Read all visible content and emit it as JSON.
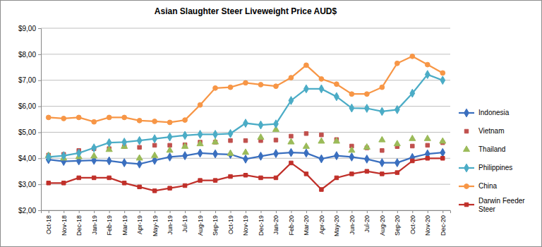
{
  "chart_data": {
    "type": "line",
    "title": "Asian Slaughter Steer Liveweight Price AUD$",
    "categories": [
      "Oct-18",
      "Nov-18",
      "Dec-18",
      "Jan-19",
      "Feb-19",
      "Mar-19",
      "Apr-19",
      "May-19",
      "Jun-19",
      "Jul-19",
      "Aug-19",
      "Sep-19",
      "Oct-19",
      "Nov-19",
      "Dec-19",
      "Jan-20",
      "Feb-20",
      "Mar-20",
      "Apr-20",
      "May-20",
      "Jun-20",
      "Jul-20",
      "Aug-20",
      "Sep-20",
      "Oct-20",
      "Nov-20",
      "Dec-20"
    ],
    "ylim": [
      2,
      9
    ],
    "yticks": [
      {
        "value": 2,
        "label": "$2,00"
      },
      {
        "value": 3,
        "label": "$3,00"
      },
      {
        "value": 4,
        "label": "$4,00"
      },
      {
        "value": 5,
        "label": "$5,00"
      },
      {
        "value": 6,
        "label": "$6,00"
      },
      {
        "value": 7,
        "label": "$7,00"
      },
      {
        "value": 8,
        "label": "$8,00"
      },
      {
        "value": 9,
        "label": "$9,00"
      }
    ],
    "grid": true,
    "legend": "right",
    "series": [
      {
        "name": "Indonesia",
        "color": "#3a6fbf",
        "marker": "diamond",
        "line_style": "solid",
        "values": [
          3.95,
          3.88,
          3.9,
          3.92,
          3.9,
          3.83,
          3.78,
          3.92,
          4.05,
          4.1,
          4.2,
          4.17,
          4.15,
          3.97,
          4.08,
          4.18,
          4.22,
          4.2,
          3.98,
          4.1,
          4.05,
          3.97,
          3.83,
          3.83,
          4.03,
          4.17,
          4.22
        ]
      },
      {
        "name": "Vietnam",
        "color": "#c0504d",
        "marker": "square",
        "line_style": "none",
        "values": [
          4.12,
          4.15,
          4.3,
          4.37,
          4.37,
          4.45,
          4.42,
          4.5,
          4.5,
          4.52,
          4.62,
          4.62,
          4.68,
          4.68,
          4.68,
          4.7,
          4.85,
          4.95,
          4.9,
          4.72,
          4.47,
          4.4,
          4.3,
          4.45,
          4.47,
          4.5,
          4.6
        ]
      },
      {
        "name": "Thailand",
        "color": "#9bbb59",
        "marker": "triangle",
        "line_style": "none",
        "values": [
          4.1,
          4.0,
          4.05,
          4.08,
          4.33,
          4.45,
          4.0,
          4.1,
          4.3,
          4.45,
          4.55,
          4.62,
          4.18,
          4.22,
          4.8,
          5.1,
          4.62,
          4.45,
          4.65,
          4.65,
          4.3,
          4.42,
          4.7,
          4.55,
          4.75,
          4.75,
          4.65
        ]
      },
      {
        "name": "Philippines",
        "color": "#4bacc6",
        "marker": "diamond",
        "line_style": "solid",
        "values": [
          4.05,
          4.1,
          4.2,
          4.4,
          4.6,
          4.62,
          4.68,
          4.75,
          4.82,
          4.88,
          4.92,
          4.92,
          4.95,
          5.35,
          5.28,
          5.32,
          6.22,
          6.67,
          6.67,
          6.37,
          5.93,
          5.92,
          5.8,
          5.87,
          6.5,
          7.22,
          7.0
        ]
      },
      {
        "name": "China",
        "color": "#f79646",
        "marker": "circle",
        "line_style": "solid",
        "values": [
          5.57,
          5.53,
          5.57,
          5.4,
          5.57,
          5.57,
          5.45,
          5.42,
          5.38,
          5.47,
          6.05,
          6.7,
          6.73,
          6.9,
          6.83,
          6.77,
          7.1,
          7.58,
          7.05,
          6.85,
          6.47,
          6.47,
          6.73,
          7.65,
          7.92,
          7.6,
          7.28
        ]
      },
      {
        "name": "Darwin Feeder Steer",
        "color": "#c0302a",
        "marker": "square",
        "line_style": "solid",
        "values": [
          3.05,
          3.05,
          3.25,
          3.25,
          3.25,
          3.05,
          2.9,
          2.75,
          2.85,
          2.95,
          3.15,
          3.15,
          3.3,
          3.35,
          3.25,
          3.25,
          3.82,
          3.4,
          2.8,
          3.25,
          3.4,
          3.5,
          3.4,
          3.45,
          3.9,
          4.0,
          4.0
        ]
      }
    ]
  }
}
